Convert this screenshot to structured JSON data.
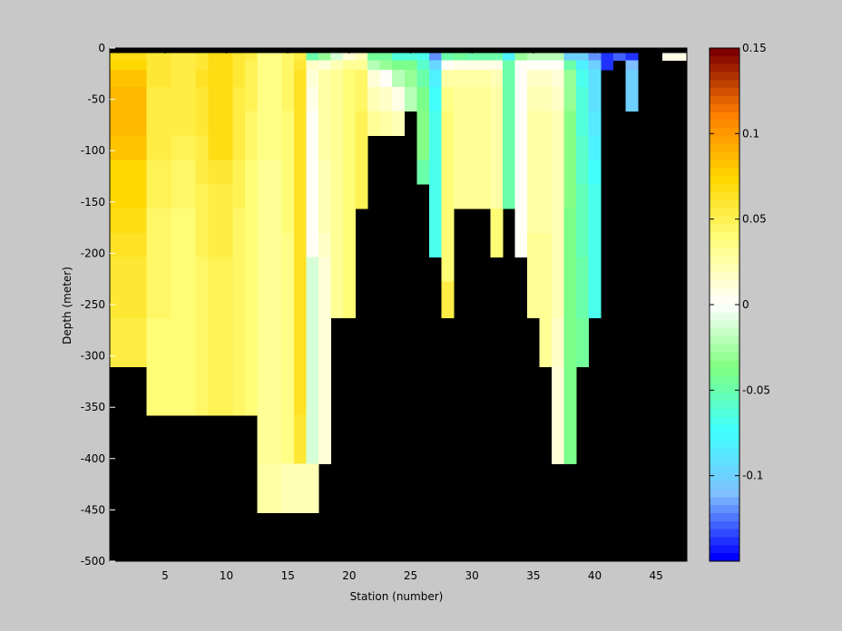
{
  "figure": {
    "background": "#c8c8c8"
  },
  "chart_data": {
    "type": "heatmap",
    "xlabel": "Station (number)",
    "ylabel": "Depth (meter)",
    "xlim": [
      1,
      47
    ],
    "ylim": [
      -500,
      0
    ],
    "xticks": [
      5,
      10,
      15,
      20,
      25,
      30,
      35,
      40,
      45
    ],
    "yticks": [
      0,
      -50,
      -100,
      -150,
      -200,
      -250,
      -300,
      -350,
      -400,
      -450,
      -500
    ],
    "depth_bins": [
      0,
      -5,
      -15,
      -25,
      -50,
      -75,
      -100,
      -125,
      -150,
      -175,
      -200,
      -225,
      -250,
      -300,
      -350,
      -400,
      -450,
      -500
    ],
    "depth_bin_edges": [
      2.5,
      -2.5,
      -10,
      -20,
      -37.5,
      -62.5,
      -87.5,
      -112.5,
      -137.5,
      -162.5,
      -187.5,
      -212.5,
      -237.5,
      -275,
      -325,
      -375,
      -425,
      -475,
      -525
    ],
    "stations": [
      1,
      2,
      3,
      4,
      5,
      6,
      7,
      8,
      9,
      10,
      11,
      12,
      13,
      14,
      15,
      16,
      17,
      18,
      19,
      20,
      21,
      22,
      23,
      24,
      25,
      26,
      27,
      28,
      29,
      30,
      31,
      32,
      33,
      34,
      35,
      36,
      37,
      38,
      39,
      40,
      41,
      42,
      43,
      44,
      45,
      46,
      47
    ],
    "missing_color": "#000000",
    "grid": false,
    "colorbar": {
      "position": "right",
      "clim": [
        -0.15,
        0.15
      ],
      "ticks": [
        0.15,
        0.1,
        0.05,
        0,
        -0.05,
        -0.1
      ],
      "tick_labels": [
        "0.15",
        "0.1",
        "0.05",
        "0",
        "-0.05",
        "-0.1"
      ],
      "colormap": [
        "#0000ff",
        "#7fbfff",
        "#40ffff",
        "#80ff80",
        "#ffffff",
        "#ffff80",
        "#ffd700",
        "#ff8000",
        "#800000"
      ],
      "levels": 64
    },
    "columns": [
      {
        "station": 1,
        "values": [
          null,
          0.066,
          0.073,
          0.083,
          0.085,
          0.086,
          0.083,
          0.074,
          0.072,
          0.067,
          0.064,
          0.06,
          0.057,
          0.052
        ]
      },
      {
        "station": 2,
        "values": [
          null,
          0.066,
          0.073,
          0.083,
          0.085,
          0.086,
          0.083,
          0.074,
          0.072,
          0.067,
          0.064,
          0.06,
          0.057,
          0.052
        ]
      },
      {
        "station": 3,
        "values": [
          null,
          0.066,
          0.073,
          0.083,
          0.085,
          0.086,
          0.083,
          0.074,
          0.072,
          0.067,
          0.064,
          0.06,
          0.057,
          0.052
        ]
      },
      {
        "station": 4,
        "values": [
          null,
          0.06,
          0.058,
          0.058,
          0.056,
          0.055,
          0.052,
          0.05,
          0.048,
          0.045,
          0.045,
          0.043,
          0.043,
          0.042,
          0.042
        ]
      },
      {
        "station": 5,
        "values": [
          null,
          0.06,
          0.058,
          0.058,
          0.056,
          0.055,
          0.052,
          0.05,
          0.048,
          0.045,
          0.045,
          0.043,
          0.043,
          0.042,
          0.042
        ]
      },
      {
        "station": 6,
        "values": [
          null,
          0.055,
          0.055,
          0.056,
          0.054,
          0.052,
          0.048,
          0.045,
          0.044,
          0.042,
          0.042,
          0.04,
          0.04,
          0.04,
          0.04
        ]
      },
      {
        "station": 7,
        "values": [
          null,
          0.055,
          0.055,
          0.056,
          0.054,
          0.052,
          0.048,
          0.045,
          0.044,
          0.042,
          0.042,
          0.04,
          0.04,
          0.04,
          0.04
        ]
      },
      {
        "station": 8,
        "values": [
          null,
          0.06,
          0.06,
          0.062,
          0.06,
          0.058,
          0.055,
          0.052,
          0.05,
          0.048,
          0.047,
          0.045,
          0.045,
          0.045,
          0.045
        ]
      },
      {
        "station": 9,
        "values": [
          null,
          0.066,
          0.066,
          0.068,
          0.068,
          0.068,
          0.066,
          0.06,
          0.056,
          0.054,
          0.052,
          0.05,
          0.05,
          0.048,
          0.048
        ]
      },
      {
        "station": 10,
        "values": [
          null,
          0.066,
          0.066,
          0.068,
          0.068,
          0.068,
          0.066,
          0.06,
          0.056,
          0.054,
          0.052,
          0.05,
          0.05,
          0.048,
          0.048
        ]
      },
      {
        "station": 11,
        "values": [
          null,
          0.06,
          0.06,
          0.058,
          0.056,
          0.054,
          0.052,
          0.05,
          0.048,
          0.046,
          0.045,
          0.045,
          0.044,
          0.043,
          0.043
        ]
      },
      {
        "station": 12,
        "values": [
          null,
          0.052,
          0.05,
          0.05,
          0.048,
          0.046,
          0.044,
          0.042,
          0.04,
          0.04,
          0.04,
          0.038,
          0.038,
          0.038,
          0.038
        ]
      },
      {
        "station": 13,
        "values": [
          null,
          0.035,
          0.035,
          0.035,
          0.034,
          0.034,
          0.033,
          0.032,
          0.032,
          0.031,
          0.031,
          0.03,
          0.03,
          0.03,
          0.03,
          0.03,
          0.025
        ]
      },
      {
        "station": 14,
        "values": [
          null,
          0.035,
          0.035,
          0.035,
          0.034,
          0.034,
          0.033,
          0.032,
          0.032,
          0.031,
          0.031,
          0.03,
          0.03,
          0.03,
          0.03,
          0.03,
          0.025
        ]
      },
      {
        "station": 15,
        "values": [
          null,
          0.045,
          0.045,
          0.044,
          0.043,
          0.042,
          0.04,
          0.04,
          0.038,
          0.038,
          0.037,
          0.037,
          0.036,
          0.036,
          0.035,
          0.035,
          0.02
        ]
      },
      {
        "station": 16,
        "values": [
          null,
          0.055,
          0.058,
          0.062,
          0.064,
          0.064,
          0.064,
          0.064,
          0.064,
          0.064,
          0.064,
          0.064,
          0.064,
          0.064,
          0.062,
          0.06,
          0.02
        ]
      },
      {
        "station": 17,
        "values": [
          null,
          -0.05,
          0.015,
          0.01,
          0.005,
          0.003,
          0.002,
          0.002,
          0.002,
          0.002,
          0.002,
          -0.01,
          -0.01,
          -0.01,
          -0.012,
          -0.012,
          0.02
        ]
      },
      {
        "station": 18,
        "values": [
          null,
          -0.03,
          0.01,
          0.025,
          0.025,
          0.025,
          0.025,
          0.02,
          0.02,
          0.02,
          0.015,
          0.01,
          0.01,
          0.01,
          0.01,
          0.01
        ]
      },
      {
        "station": 19,
        "values": [
          null,
          -0.01,
          0.02,
          0.03,
          0.03,
          0.032,
          0.032,
          0.03,
          0.03,
          0.03,
          0.03,
          0.03,
          0.03
        ]
      },
      {
        "station": 20,
        "values": [
          null,
          0.01,
          0.03,
          0.04,
          0.04,
          0.04,
          0.04,
          0.04,
          0.04,
          0.04,
          0.04,
          0.04,
          0.04
        ]
      },
      {
        "station": 21,
        "values": [
          null,
          0.02,
          0.03,
          0.045,
          0.045,
          0.048,
          0.048,
          0.048,
          0.048
        ]
      },
      {
        "station": 22,
        "values": [
          null,
          -0.045,
          -0.02,
          0.01,
          0.02,
          0.03
        ]
      },
      {
        "station": 23,
        "values": [
          null,
          -0.045,
          -0.03,
          0.0,
          0.015,
          0.025
        ]
      },
      {
        "station": 24,
        "values": [
          null,
          -0.065,
          -0.04,
          -0.02,
          0.005,
          0.02
        ]
      },
      {
        "station": 25,
        "values": [
          null,
          -0.065,
          -0.04,
          -0.03,
          -0.02
        ]
      },
      {
        "station": 26,
        "values": [
          null,
          -0.07,
          -0.06,
          -0.05,
          -0.04,
          -0.035,
          -0.035,
          -0.05
        ]
      },
      {
        "station": 27,
        "values": [
          null,
          -0.12,
          -0.095,
          -0.08,
          -0.072,
          -0.07,
          -0.07,
          -0.07,
          -0.07,
          -0.07,
          -0.07
        ]
      },
      {
        "station": 28,
        "values": [
          null,
          -0.05,
          0.0,
          0.025,
          0.035,
          0.04,
          0.04,
          0.04,
          0.04,
          0.04,
          0.04,
          0.04,
          0.055
        ]
      },
      {
        "station": 29,
        "values": [
          null,
          -0.045,
          0.005,
          0.025,
          0.03,
          0.03,
          0.03,
          0.03,
          0.03
        ]
      },
      {
        "station": 30,
        "values": [
          null,
          -0.05,
          0.005,
          0.025,
          0.03,
          0.03,
          0.03,
          0.03,
          0.03
        ]
      },
      {
        "station": 31,
        "values": [
          null,
          -0.05,
          0.005,
          0.025,
          0.03,
          0.03,
          0.03,
          0.03,
          0.03
        ]
      },
      {
        "station": 32,
        "values": [
          null,
          -0.05,
          0.005,
          0.02,
          0.025,
          0.025,
          0.025,
          0.025,
          0.025,
          0.04,
          0.04
        ]
      },
      {
        "station": 33,
        "values": [
          null,
          -0.08,
          -0.05,
          -0.05,
          -0.05,
          -0.05,
          -0.05,
          -0.05,
          -0.05
        ]
      },
      {
        "station": 34,
        "values": [
          null,
          -0.03,
          0.0,
          0.0,
          0.0,
          0.0,
          0.0,
          0.0,
          0.0,
          0.0,
          0.0
        ]
      },
      {
        "station": 35,
        "values": [
          null,
          -0.02,
          0.0,
          0.015,
          0.02,
          0.025,
          0.025,
          0.025,
          0.025,
          0.025,
          0.03,
          0.03,
          0.03
        ]
      },
      {
        "station": 36,
        "values": [
          null,
          -0.02,
          0.0,
          0.015,
          0.02,
          0.025,
          0.025,
          0.025,
          0.025,
          0.025,
          0.03,
          0.03,
          0.03,
          0.03
        ]
      },
      {
        "station": 37,
        "values": [
          null,
          -0.02,
          0.0,
          0.01,
          0.015,
          0.02,
          0.02,
          0.02,
          0.02,
          0.02,
          0.02,
          0.02,
          0.02,
          0.015,
          0.01,
          0.01
        ]
      },
      {
        "station": 38,
        "values": [
          null,
          -0.1,
          -0.05,
          -0.03,
          -0.03,
          -0.035,
          -0.035,
          -0.035,
          -0.035,
          -0.04,
          -0.04,
          -0.04,
          -0.04,
          -0.04,
          -0.04,
          -0.04
        ]
      },
      {
        "station": 39,
        "values": [
          null,
          -0.1,
          -0.08,
          -0.07,
          -0.065,
          -0.062,
          -0.06,
          -0.058,
          -0.055,
          -0.055,
          -0.055,
          -0.05,
          -0.05,
          -0.045
        ]
      },
      {
        "station": 40,
        "values": [
          null,
          -0.12,
          -0.1,
          -0.09,
          -0.09,
          -0.085,
          -0.08,
          -0.075,
          -0.07,
          -0.07,
          -0.07,
          -0.07,
          -0.07
        ]
      },
      {
        "station": 41,
        "values": [
          null,
          -0.14,
          -0.14
        ]
      },
      {
        "station": 42,
        "values": [
          null,
          -0.13
        ]
      },
      {
        "station": 43,
        "values": [
          null,
          -0.14,
          -0.11,
          -0.1,
          -0.1
        ]
      },
      {
        "station": 44,
        "values": [
          null
        ]
      },
      {
        "station": 45,
        "values": [
          null
        ]
      },
      {
        "station": 46,
        "values": [
          null,
          0.005
        ]
      },
      {
        "station": 47,
        "values": [
          null,
          0.005
        ]
      }
    ]
  }
}
